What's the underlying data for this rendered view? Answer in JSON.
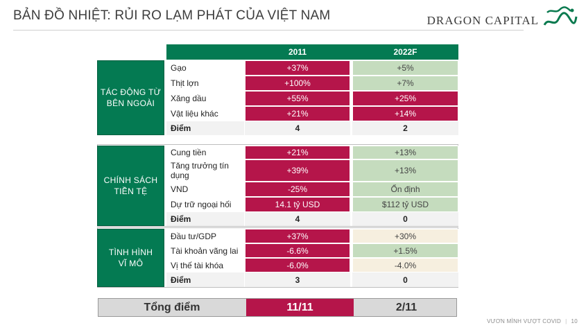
{
  "title": "BẢN ĐỒ NHIỆT: RỦI RO LẠM PHÁT CỦA VIỆT NAM",
  "logo": {
    "text": "DRAGON CAPITAL",
    "icon": "dragon-icon"
  },
  "table": {
    "headers": [
      "2011",
      "2022F"
    ],
    "sections": [
      {
        "category": "TÁC ĐỘNG TỪ\nBÊN NGOÀI",
        "rows": [
          {
            "label": "Gạo",
            "v2011": "+37%",
            "v2022": "+5%"
          },
          {
            "label": "Thịt lợn",
            "v2011": "+100%",
            "v2022": "+7%"
          },
          {
            "label": "Xăng dầu",
            "v2011": "+55%",
            "v2022": "+25%"
          },
          {
            "label": "Vật liệu khác",
            "v2011": "+21%",
            "v2022": "+14%"
          }
        ],
        "score": {
          "label": "Điểm",
          "v2011": "4",
          "v2022": "2"
        }
      },
      {
        "category": "CHÍNH SÁCH\nTIỀN TỆ",
        "rows": [
          {
            "label": "Cung tiền",
            "v2011": "+21%",
            "v2022": "+13%"
          },
          {
            "label": "Tăng trưởng tín dụng",
            "v2011": "+39%",
            "v2022": "+13%"
          },
          {
            "label": "VND",
            "v2011": "-25%",
            "v2022": "Ổn định"
          },
          {
            "label": "Dự trữ ngoại hối",
            "v2011": "14.1 tỷ USD",
            "v2022": "$112 tỷ USD"
          }
        ],
        "score": {
          "label": "Điểm",
          "v2011": "4",
          "v2022": "0"
        }
      },
      {
        "category": "TÌNH HÌNH\nVĨ MÔ",
        "rows": [
          {
            "label": "Đầu tư/GDP",
            "v2011": "+37%",
            "v2022": "+30%"
          },
          {
            "label": "Tài khoản vãng lai",
            "v2011": "-6.6%",
            "v2022": "+1.5%"
          },
          {
            "label": "Vị thế tài khóa",
            "v2011": "-6.0%",
            "v2022": "-4.0%"
          }
        ],
        "score": {
          "label": "Điểm",
          "v2011": "3",
          "v2022": "0"
        }
      }
    ],
    "total": {
      "label": "Tổng điểm",
      "v2011": "11/11",
      "v2022": "2/11"
    }
  },
  "footer": {
    "text": "VƯƠN MÌNH VƯỢT COVID",
    "page": "10"
  },
  "colors": {
    "brand_green": "#047a52",
    "risk_red": "#b5154a",
    "low_green": "#c5dcbe",
    "neutral_cream": "#f6efdf"
  }
}
